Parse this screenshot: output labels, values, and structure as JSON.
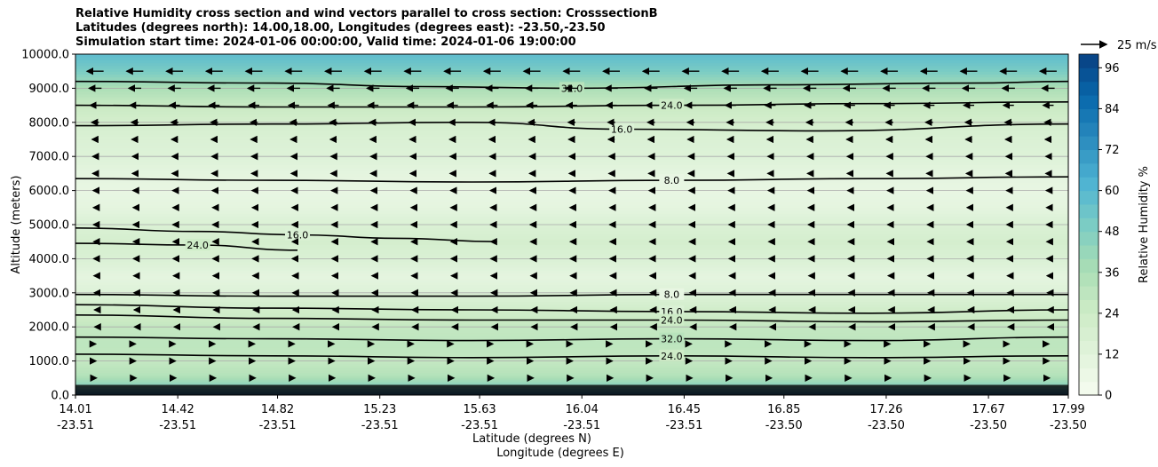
{
  "chart_data": {
    "type": "heatmap",
    "title_lines": [
      "Relative Humidity cross section and wind vectors parallel to cross section: CrosssectionB",
      "Latitudes (degrees north): 14.00,18.00, Longitudes (degrees east): -23.50,-23.50",
      "Simulation start time: 2024-01-06 00:00:00, Valid time: 2024-01-06 19:00:00"
    ],
    "ylabel": "Altitude (meters)",
    "xlabel_lat": "Latitude (degrees N)",
    "xlabel_lon": "Longitude (degrees E)",
    "ylim": [
      0,
      10000
    ],
    "yticks": [
      "0.0",
      "1000.0",
      "2000.0",
      "3000.0",
      "4000.0",
      "5000.0",
      "6000.0",
      "7000.0",
      "8000.0",
      "9000.0",
      "10000.0"
    ],
    "xticks_lat": [
      "14.01",
      "14.42",
      "14.82",
      "15.23",
      "15.63",
      "16.04",
      "16.45",
      "16.85",
      "17.26",
      "17.67",
      "17.99"
    ],
    "xticks_lon": [
      "-23.51",
      "-23.51",
      "-23.51",
      "-23.51",
      "-23.51",
      "-23.51",
      "-23.51",
      "-23.50",
      "-23.50",
      "-23.50",
      "-23.50"
    ],
    "xlim_lat": [
      14.01,
      17.99
    ],
    "grid": "horizontal",
    "colorbar": {
      "label": "Relative Humidity %",
      "range": [
        0,
        100
      ],
      "ticks": [
        "0",
        "12",
        "24",
        "36",
        "48",
        "60",
        "72",
        "84",
        "96"
      ],
      "colors": [
        "#f7fcf0",
        "#e0f3db",
        "#ccebc5",
        "#a8ddb5",
        "#7bccc4",
        "#4eb3d3",
        "#2b8cbe",
        "#0868ac",
        "#084081"
      ]
    },
    "quiver_key": "25 m/s",
    "contour_levels": [
      "8.0",
      "16.0",
      "24.0",
      "32.0",
      "40.0",
      "48.0",
      "56.0",
      "64.0",
      "72.0",
      "80.0",
      "88.0"
    ],
    "rh_profile": {
      "altitude": [
        0,
        300,
        600,
        1000,
        1500,
        2000,
        2500,
        3000,
        3500,
        4000,
        4500,
        5000,
        5500,
        6000,
        6500,
        7000,
        7500,
        8000,
        8500,
        9000,
        9500,
        10000
      ],
      "rh_percent": [
        90,
        45,
        33,
        28,
        30,
        28,
        22,
        14,
        10,
        16,
        20,
        16,
        10,
        8,
        10,
        14,
        16,
        20,
        26,
        36,
        50,
        58
      ]
    },
    "contours": [
      {
        "level": "8.0",
        "lat": [
          14.01,
          14.8,
          15.6,
          16.4,
          17.2,
          17.99
        ],
        "alt": [
          6350,
          6300,
          6250,
          6300,
          6350,
          6400
        ]
      },
      {
        "level": "16.0",
        "lat": [
          14.01,
          14.8,
          15.6,
          16.2,
          17.0,
          17.99
        ],
        "alt": [
          7900,
          7950,
          8000,
          7800,
          7750,
          7950
        ]
      },
      {
        "level": "24.0",
        "lat": [
          14.01,
          14.8,
          15.6,
          16.4,
          17.2,
          17.99
        ],
        "alt": [
          8500,
          8450,
          8450,
          8500,
          8550,
          8600
        ]
      },
      {
        "level": "32.0",
        "lat": [
          14.01,
          14.8,
          15.4,
          16.0,
          16.8,
          17.6,
          17.99
        ],
        "alt": [
          9200,
          9150,
          9050,
          9000,
          9100,
          9150,
          9200
        ]
      },
      {
        "level": "8.0",
        "lat": [
          14.01,
          14.8,
          15.6,
          16.4,
          17.2,
          17.99
        ],
        "alt": [
          2950,
          2900,
          2900,
          2950,
          2950,
          2950
        ]
      },
      {
        "level": "16.0",
        "lat": [
          14.01,
          14.8,
          15.6,
          16.4,
          17.2,
          17.99
        ],
        "alt": [
          2650,
          2550,
          2500,
          2450,
          2400,
          2500
        ]
      },
      {
        "level": "24.0",
        "lat": [
          14.01,
          14.8,
          15.6,
          16.4,
          17.2,
          17.99
        ],
        "alt": [
          2350,
          2250,
          2200,
          2200,
          2150,
          2200
        ]
      },
      {
        "level": "32.0",
        "lat": [
          14.01,
          14.8,
          15.6,
          16.4,
          17.2,
          17.99
        ],
        "alt": [
          1700,
          1650,
          1600,
          1650,
          1600,
          1700
        ]
      },
      {
        "level": "24.0",
        "lat": [
          14.01,
          14.8,
          15.6,
          16.4,
          17.2,
          17.99
        ],
        "alt": [
          1200,
          1150,
          1100,
          1150,
          1100,
          1150
        ]
      },
      {
        "level": "16.0",
        "lat": [
          14.01,
          14.5,
          14.9,
          15.3,
          15.7
        ],
        "alt": [
          4900,
          4800,
          4700,
          4600,
          4500
        ]
      },
      {
        "level": "24.0",
        "lat": [
          14.01,
          14.5,
          14.9
        ],
        "alt": [
          4450,
          4400,
          4250
        ]
      }
    ],
    "wind_rows": [
      {
        "alt": 9500,
        "u": -16
      },
      {
        "alt": 9000,
        "u": -12
      },
      {
        "alt": 8500,
        "u": -10
      },
      {
        "alt": 8000,
        "u": -7
      },
      {
        "alt": 7500,
        "u": -6
      },
      {
        "alt": 7000,
        "u": -5
      },
      {
        "alt": 6500,
        "u": -5
      },
      {
        "alt": 6000,
        "u": -4
      },
      {
        "alt": 5500,
        "u": -3.5
      },
      {
        "alt": 5000,
        "u": -3.5
      },
      {
        "alt": 4500,
        "u": -3
      },
      {
        "alt": 4000,
        "u": -3
      },
      {
        "alt": 3500,
        "u": -2.5
      },
      {
        "alt": 3000,
        "u": -2
      },
      {
        "alt": 2500,
        "u": -1.5
      },
      {
        "alt": 2000,
        "u": -1
      },
      {
        "alt": 1500,
        "u": 0.6
      },
      {
        "alt": 1000,
        "u": 1
      },
      {
        "alt": 500,
        "u": 2
      }
    ],
    "wind_columns": 25
  }
}
